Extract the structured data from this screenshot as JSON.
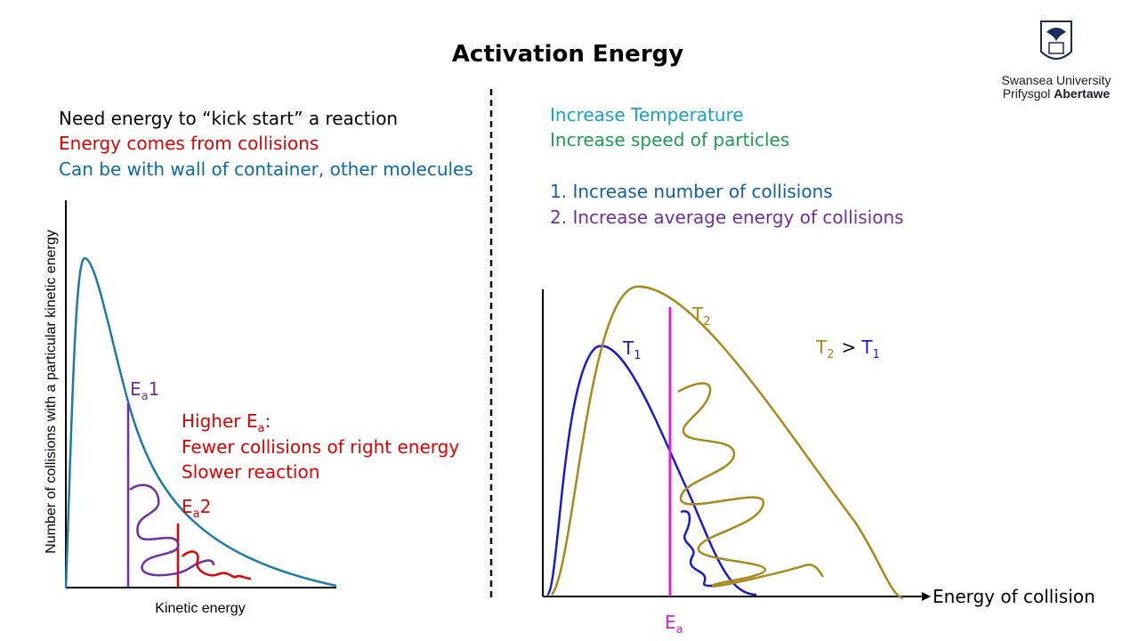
{
  "header": {
    "title": "Activation Energy",
    "logo": {
      "line1": "Swansea University",
      "line2_a": "Prifysgol",
      "line2_b": "Abertawe"
    }
  },
  "left": {
    "lines": [
      "Need energy to “kick start” a reaction",
      "Energy comes from collisions",
      "Can be with wall of container, other molecules"
    ],
    "y_axis_label": "Number of collisions with a particular kinetic energy",
    "x_axis_label": "Kinetic energy",
    "ea1": {
      "symbol": "E",
      "sub": "a",
      "suffix": "1"
    },
    "ea2": {
      "symbol": "E",
      "sub": "a",
      "suffix": "2"
    },
    "note": {
      "line1_text": "Higher E",
      "line1_sub": "a",
      "line1_end": ":",
      "line2": "Fewer collisions of right energy",
      "line3": "Slower reaction"
    }
  },
  "right": {
    "lines": [
      "Increase Temperature",
      "Increase speed of particles"
    ],
    "list": [
      "1. Increase number of collisions",
      "2.  Increase average energy of collisions"
    ],
    "x_axis_label": "Energy of collision",
    "t1": {
      "symbol": "T",
      "sub": "1"
    },
    "t2": {
      "symbol": "T",
      "sub": "2"
    },
    "compare": {
      "left": "T",
      "left_sub": "2",
      "op": ">",
      "right": "T",
      "right_sub": "1"
    },
    "ea": {
      "symbol": "E",
      "sub": "a"
    }
  }
}
